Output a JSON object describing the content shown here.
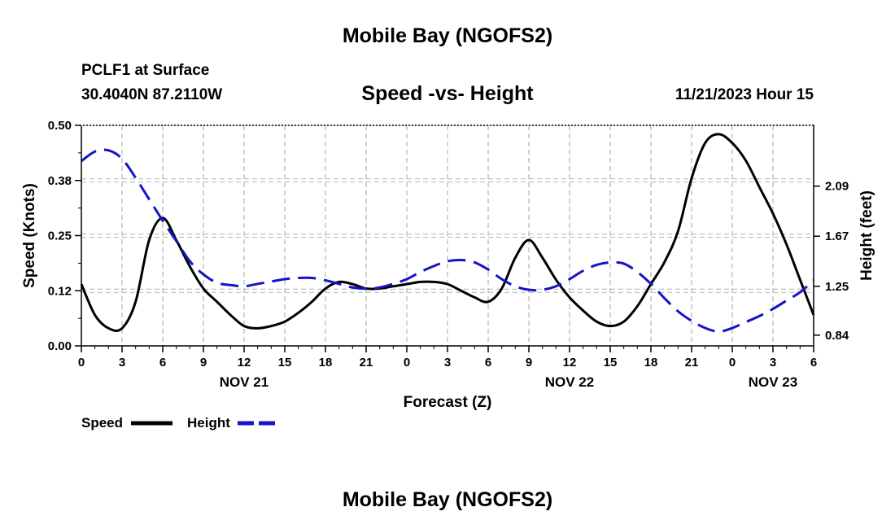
{
  "header": {
    "title": "Mobile Bay (NGOFS2)",
    "station": "PCLF1 at Surface",
    "coords": "30.4040N  87.2110W",
    "chart_title": "Speed -vs- Height",
    "timestamp": "11/21/2023 Hour 15"
  },
  "footer": {
    "title": "Mobile Bay (NGOFS2)"
  },
  "colors": {
    "speed": "#000000",
    "height": "#1414c8",
    "grid": "#b4b4b4"
  },
  "chart_data": {
    "type": "line",
    "title": "Speed -vs- Height",
    "xlabel": "Forecast (Z)",
    "ylabel": "Speed (Knots)",
    "y2label": "Height (feet)",
    "x_range_hours": [
      0,
      54
    ],
    "x_ticks": [
      0,
      3,
      6,
      9,
      12,
      15,
      18,
      21,
      24,
      27,
      30,
      33,
      36,
      39,
      42,
      45,
      48,
      51,
      54
    ],
    "x_tick_labels": [
      "0",
      "3",
      "6",
      "9",
      "12",
      "15",
      "18",
      "21",
      "0",
      "3",
      "6",
      "9",
      "12",
      "15",
      "18",
      "21",
      "0",
      "3",
      "6"
    ],
    "date_labels": [
      {
        "hour": 12,
        "label": "NOV 21"
      },
      {
        "hour": 36,
        "label": "NOV 22"
      },
      {
        "hour": 51,
        "label": "NOV 23"
      }
    ],
    "ylim": [
      0,
      0.5
    ],
    "y_ticks": [
      0,
      0.125,
      0.25,
      0.375,
      0.5
    ],
    "y_tick_labels": [
      "0.00",
      "0.12",
      "0.25",
      "0.38",
      "0.50"
    ],
    "y2lim": [
      0.75,
      2.6
    ],
    "y2_ticks": [
      0.84,
      1.25,
      1.67,
      2.09
    ],
    "y2_tick_labels": [
      "0.84",
      "1.25",
      "1.67",
      "2.09"
    ],
    "legend": [
      {
        "label": "Speed",
        "style": "solid"
      },
      {
        "label": "Height",
        "style": "dashed"
      }
    ],
    "series": [
      {
        "name": "Speed",
        "axis": "left",
        "points": [
          [
            0,
            0.14
          ],
          [
            1,
            0.07
          ],
          [
            2,
            0.04
          ],
          [
            3,
            0.04
          ],
          [
            4,
            0.1
          ],
          [
            5,
            0.24
          ],
          [
            6,
            0.29
          ],
          [
            7,
            0.24
          ],
          [
            8,
            0.18
          ],
          [
            9,
            0.13
          ],
          [
            10,
            0.1
          ],
          [
            11,
            0.07
          ],
          [
            12,
            0.045
          ],
          [
            13,
            0.04
          ],
          [
            14,
            0.045
          ],
          [
            15,
            0.055
          ],
          [
            16,
            0.075
          ],
          [
            17,
            0.1
          ],
          [
            18,
            0.13
          ],
          [
            19,
            0.145
          ],
          [
            20,
            0.14
          ],
          [
            21,
            0.13
          ],
          [
            22,
            0.13
          ],
          [
            23,
            0.135
          ],
          [
            24,
            0.14
          ],
          [
            25,
            0.145
          ],
          [
            26,
            0.145
          ],
          [
            27,
            0.14
          ],
          [
            28,
            0.125
          ],
          [
            29,
            0.11
          ],
          [
            30,
            0.1
          ],
          [
            31,
            0.13
          ],
          [
            32,
            0.2
          ],
          [
            33,
            0.24
          ],
          [
            34,
            0.2
          ],
          [
            35,
            0.15
          ],
          [
            36,
            0.11
          ],
          [
            37,
            0.08
          ],
          [
            38,
            0.055
          ],
          [
            39,
            0.045
          ],
          [
            40,
            0.055
          ],
          [
            41,
            0.09
          ],
          [
            42,
            0.14
          ],
          [
            43,
            0.19
          ],
          [
            44,
            0.26
          ],
          [
            45,
            0.38
          ],
          [
            46,
            0.46
          ],
          [
            47,
            0.48
          ],
          [
            48,
            0.46
          ],
          [
            49,
            0.42
          ],
          [
            50,
            0.36
          ],
          [
            51,
            0.3
          ],
          [
            52,
            0.23
          ],
          [
            53,
            0.15
          ],
          [
            54,
            0.07
          ]
        ]
      },
      {
        "name": "Height",
        "axis": "right",
        "points": [
          [
            0,
            2.3
          ],
          [
            1,
            2.38
          ],
          [
            2,
            2.39
          ],
          [
            3,
            2.32
          ],
          [
            4,
            2.16
          ],
          [
            5,
            1.98
          ],
          [
            6,
            1.8
          ],
          [
            7,
            1.63
          ],
          [
            8,
            1.46
          ],
          [
            9,
            1.35
          ],
          [
            10,
            1.28
          ],
          [
            11,
            1.26
          ],
          [
            12,
            1.25
          ],
          [
            13,
            1.27
          ],
          [
            14,
            1.29
          ],
          [
            15,
            1.31
          ],
          [
            16,
            1.32
          ],
          [
            17,
            1.32
          ],
          [
            18,
            1.3
          ],
          [
            19,
            1.27
          ],
          [
            20,
            1.24
          ],
          [
            21,
            1.23
          ],
          [
            22,
            1.24
          ],
          [
            23,
            1.27
          ],
          [
            24,
            1.31
          ],
          [
            25,
            1.37
          ],
          [
            26,
            1.42
          ],
          [
            27,
            1.46
          ],
          [
            28,
            1.47
          ],
          [
            29,
            1.45
          ],
          [
            30,
            1.39
          ],
          [
            31,
            1.31
          ],
          [
            32,
            1.25
          ],
          [
            33,
            1.22
          ],
          [
            34,
            1.22
          ],
          [
            35,
            1.25
          ],
          [
            36,
            1.31
          ],
          [
            37,
            1.38
          ],
          [
            38,
            1.43
          ],
          [
            39,
            1.45
          ],
          [
            40,
            1.44
          ],
          [
            41,
            1.37
          ],
          [
            42,
            1.27
          ],
          [
            43,
            1.15
          ],
          [
            44,
            1.04
          ],
          [
            45,
            0.96
          ],
          [
            46,
            0.9
          ],
          [
            47,
            0.87
          ],
          [
            48,
            0.9
          ],
          [
            49,
            0.95
          ],
          [
            50,
            1.0
          ],
          [
            51,
            1.06
          ],
          [
            52,
            1.13
          ],
          [
            53,
            1.2
          ],
          [
            54,
            1.3
          ]
        ]
      }
    ]
  }
}
